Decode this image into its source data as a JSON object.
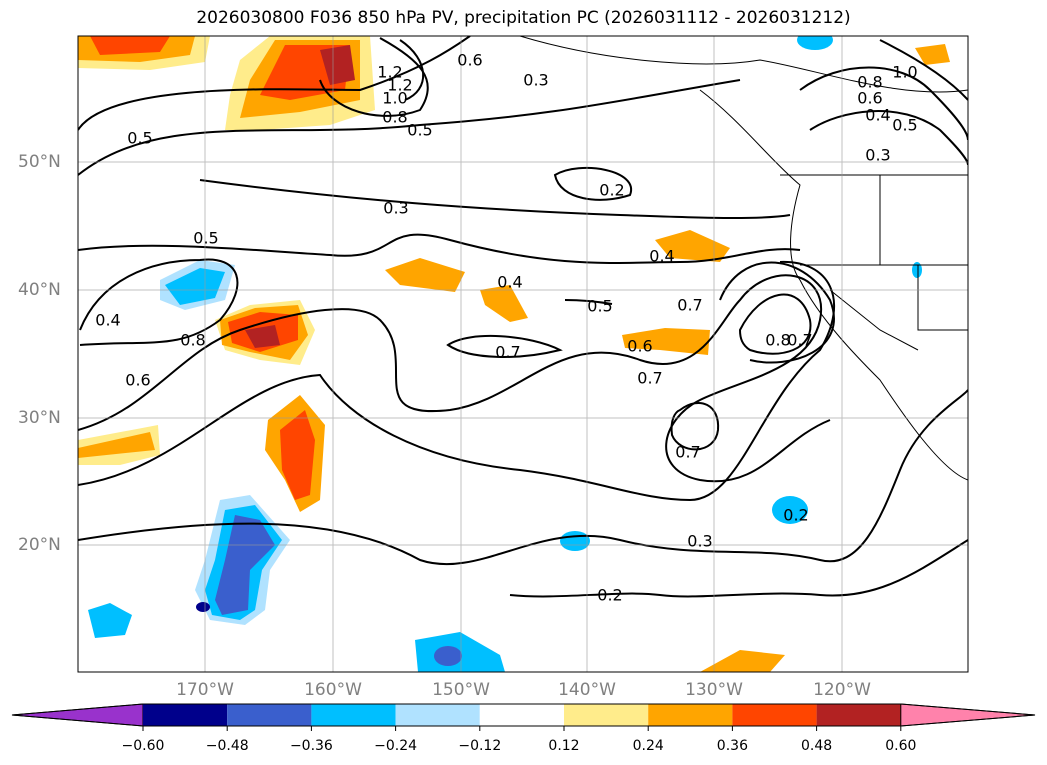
{
  "title": "2026030800 F036 850 hPa PV, precipitation PC (2026031112 - 2026031212)",
  "lat_labels": [
    "50°N",
    "40°N",
    "30°N",
    "20°N"
  ],
  "lon_labels": [
    "170°W",
    "160°W",
    "150°W",
    "140°W",
    "130°W",
    "120°W"
  ],
  "contour_labels": [
    "0.5",
    "0.3",
    "0.5",
    "0.8",
    "0.6",
    "0.4",
    "0.4",
    "0.5",
    "0.6",
    "0.7",
    "0.7",
    "0.7",
    "0.8",
    "0.7",
    "0.2",
    "0.3",
    "0.2",
    "0.2",
    "0.3",
    "0.6",
    "1.0",
    "0.8",
    "0.6",
    "0.4",
    "0.5",
    "0.3",
    "1.0",
    "1.2",
    "0.8",
    "0.5",
    "0.4",
    "0.7",
    "1.2"
  ],
  "colorbar": {
    "ticks": [
      "−0.60",
      "−0.48",
      "−0.36",
      "−0.24",
      "−0.12",
      "0.12",
      "0.24",
      "0.36",
      "0.48",
      "0.60"
    ],
    "colors": [
      "#9932cc",
      "#00008b",
      "#3a5fcd",
      "#00bfff",
      "#b0e2ff",
      "#ffffff",
      "#ffec8b",
      "#ffa500",
      "#ff4500",
      "#b22222",
      "#ff82ab"
    ]
  }
}
